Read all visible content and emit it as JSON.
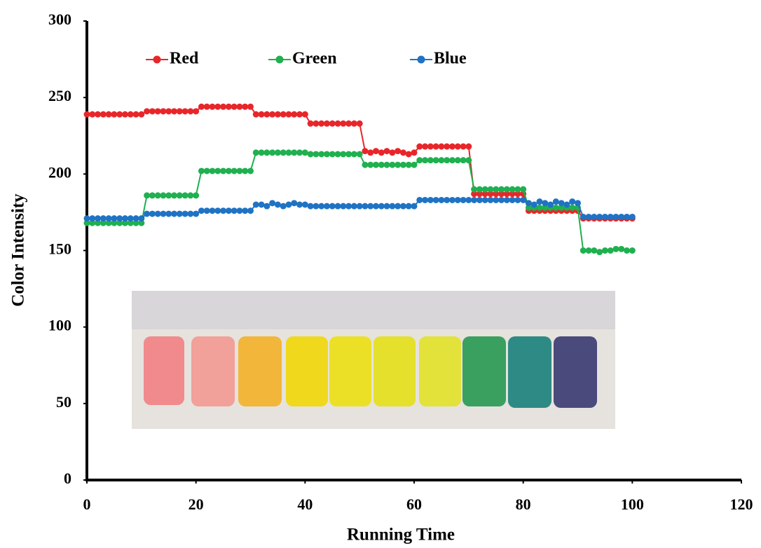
{
  "chart_data": {
    "type": "line",
    "x_label": "Running Time",
    "y_label": "Color Intensity",
    "x": [
      0,
      1,
      2,
      3,
      4,
      5,
      6,
      7,
      8,
      9,
      10,
      11,
      12,
      13,
      14,
      15,
      16,
      17,
      18,
      19,
      20,
      21,
      22,
      23,
      24,
      25,
      26,
      27,
      28,
      29,
      30,
      31,
      32,
      33,
      34,
      35,
      36,
      37,
      38,
      39,
      40,
      41,
      42,
      43,
      44,
      45,
      46,
      47,
      48,
      49,
      50,
      51,
      52,
      53,
      54,
      55,
      56,
      57,
      58,
      59,
      60,
      61,
      62,
      63,
      64,
      65,
      66,
      67,
      68,
      69,
      70,
      71,
      72,
      73,
      74,
      75,
      76,
      77,
      78,
      79,
      80,
      81,
      82,
      83,
      84,
      85,
      86,
      87,
      88,
      89,
      90,
      91,
      92,
      93,
      94,
      95,
      96,
      97,
      98,
      99,
      100
    ],
    "series": [
      {
        "name": "Red",
        "color": "#e8262a",
        "values": [
          239,
          239,
          239,
          239,
          239,
          239,
          239,
          239,
          239,
          239,
          239,
          241,
          241,
          241,
          241,
          241,
          241,
          241,
          241,
          241,
          241,
          244,
          244,
          244,
          244,
          244,
          244,
          244,
          244,
          244,
          244,
          239,
          239,
          239,
          239,
          239,
          239,
          239,
          239,
          239,
          239,
          233,
          233,
          233,
          233,
          233,
          233,
          233,
          233,
          233,
          233,
          215,
          214,
          215,
          214,
          215,
          214,
          215,
          214,
          213,
          214,
          218,
          218,
          218,
          218,
          218,
          218,
          218,
          218,
          218,
          218,
          187,
          187,
          187,
          187,
          187,
          187,
          187,
          187,
          187,
          187,
          176,
          176,
          176,
          176,
          176,
          176,
          176,
          176,
          176,
          176,
          171,
          171,
          171,
          171,
          171,
          171,
          171,
          171,
          171,
          171
        ]
      },
      {
        "name": "Green",
        "color": "#1fb04f",
        "values": [
          168,
          168,
          168,
          168,
          168,
          168,
          168,
          168,
          168,
          168,
          168,
          186,
          186,
          186,
          186,
          186,
          186,
          186,
          186,
          186,
          186,
          202,
          202,
          202,
          202,
          202,
          202,
          202,
          202,
          202,
          202,
          214,
          214,
          214,
          214,
          214,
          214,
          214,
          214,
          214,
          214,
          213,
          213,
          213,
          213,
          213,
          213,
          213,
          213,
          213,
          213,
          206,
          206,
          206,
          206,
          206,
          206,
          206,
          206,
          206,
          206,
          209,
          209,
          209,
          209,
          209,
          209,
          209,
          209,
          209,
          209,
          190,
          190,
          190,
          190,
          190,
          190,
          190,
          190,
          190,
          190,
          178,
          178,
          178,
          178,
          178,
          178,
          178,
          178,
          178,
          178,
          150,
          150,
          150,
          149,
          150,
          150,
          151,
          151,
          150,
          150
        ]
      },
      {
        "name": "Blue",
        "color": "#1f73c4",
        "values": [
          171,
          171,
          171,
          171,
          171,
          171,
          171,
          171,
          171,
          171,
          171,
          174,
          174,
          174,
          174,
          174,
          174,
          174,
          174,
          174,
          174,
          176,
          176,
          176,
          176,
          176,
          176,
          176,
          176,
          176,
          176,
          180,
          180,
          179,
          181,
          180,
          179,
          180,
          181,
          180,
          180,
          179,
          179,
          179,
          179,
          179,
          179,
          179,
          179,
          179,
          179,
          179,
          179,
          179,
          179,
          179,
          179,
          179,
          179,
          179,
          179,
          183,
          183,
          183,
          183,
          183,
          183,
          183,
          183,
          183,
          183,
          183,
          183,
          183,
          183,
          183,
          183,
          183,
          183,
          183,
          183,
          181,
          180,
          182,
          181,
          180,
          182,
          181,
          180,
          182,
          181,
          172,
          172,
          172,
          172,
          172,
          172,
          172,
          172,
          172,
          172
        ]
      }
    ],
    "xlim": [
      0,
      120
    ],
    "xticks": [
      0,
      20,
      40,
      60,
      80,
      100,
      120
    ],
    "ylim": [
      0,
      300
    ],
    "yticks": [
      0,
      50,
      100,
      150,
      200,
      250,
      300
    ],
    "grid": false,
    "legend": "top"
  }
}
